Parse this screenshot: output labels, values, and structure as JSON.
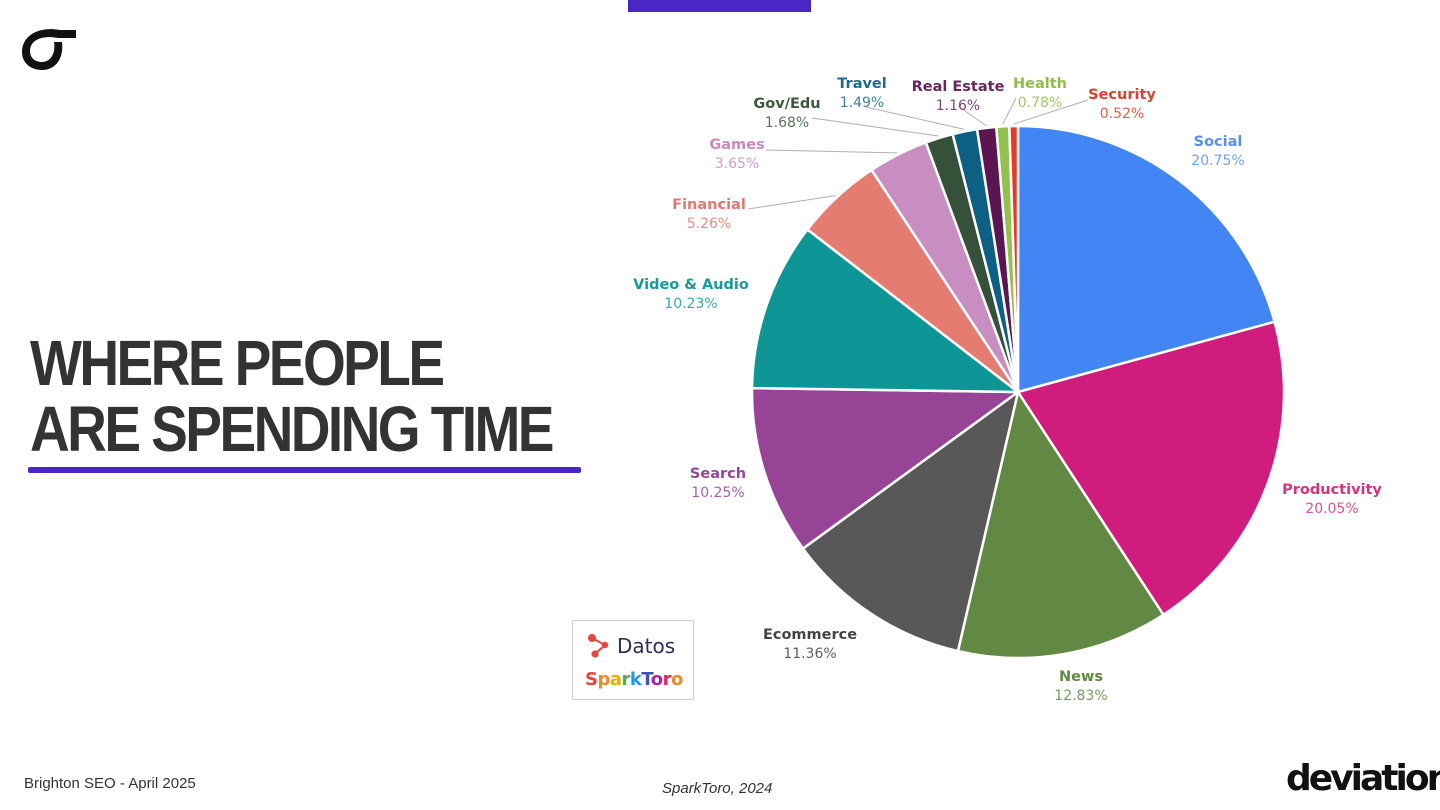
{
  "slide": {
    "headline_line1": "WHERE PEOPLE",
    "headline_line2": "ARE SPENDING TIME",
    "footer_left": "Brighton SEO - April 2025",
    "footer_center": "SparkToro, 2024",
    "brand": "deviation",
    "badge_datos": "Datos",
    "badge_sparktoro": "SparkToro",
    "accent_color": "#4a26c4"
  },
  "chart_data": {
    "type": "pie",
    "title": "",
    "start": "top, clockwise",
    "slices": [
      {
        "label": "Social",
        "pct_label": "20.75%",
        "value": 20.75,
        "color": "#4285f4",
        "label_color": "#5b8ff0"
      },
      {
        "label": "Productivity",
        "pct_label": "20.05%",
        "value": 20.05,
        "color": "#d01c7d",
        "label_color": "#d6337f"
      },
      {
        "label": "News",
        "pct_label": "12.83%",
        "value": 12.83,
        "color": "#628943",
        "label_color": "#5d8a3f"
      },
      {
        "label": "Ecommerce",
        "pct_label": "11.36%",
        "value": 11.36,
        "color": "#585858",
        "label_color": "#444444"
      },
      {
        "label": "Search",
        "pct_label": "10.25%",
        "value": 10.25,
        "color": "#974497",
        "label_color": "#974497"
      },
      {
        "label": "Video & Audio",
        "pct_label": "10.23%",
        "value": 10.23,
        "color": "#0e9696",
        "label_color": "#179a9a"
      },
      {
        "label": "Financial",
        "pct_label": "5.26%",
        "value": 5.26,
        "color": "#e57c72",
        "label_color": "#e07870"
      },
      {
        "label": "Games",
        "pct_label": "3.65%",
        "value": 3.65,
        "color": "#c88ec2",
        "label_color": "#c98ac2"
      },
      {
        "label": "Gov/Edu",
        "pct_label": "1.68%",
        "value": 1.68,
        "color": "#36513a",
        "label_color": "#3c5a3d"
      },
      {
        "label": "Travel",
        "pct_label": "1.49%",
        "value": 1.49,
        "color": "#0e5f84",
        "label_color": "#1d6a8c"
      },
      {
        "label": "Real Estate",
        "pct_label": "1.16%",
        "value": 1.16,
        "color": "#5b1651",
        "label_color": "#6a2460"
      },
      {
        "label": "Health",
        "pct_label": "0.78%",
        "value": 0.78,
        "color": "#90c24c",
        "label_color": "#8fbf4a"
      },
      {
        "label": "Security",
        "pct_label": "0.52%",
        "value": 0.52,
        "color": "#e53a2b",
        "label_color": "#e0402e"
      }
    ]
  }
}
